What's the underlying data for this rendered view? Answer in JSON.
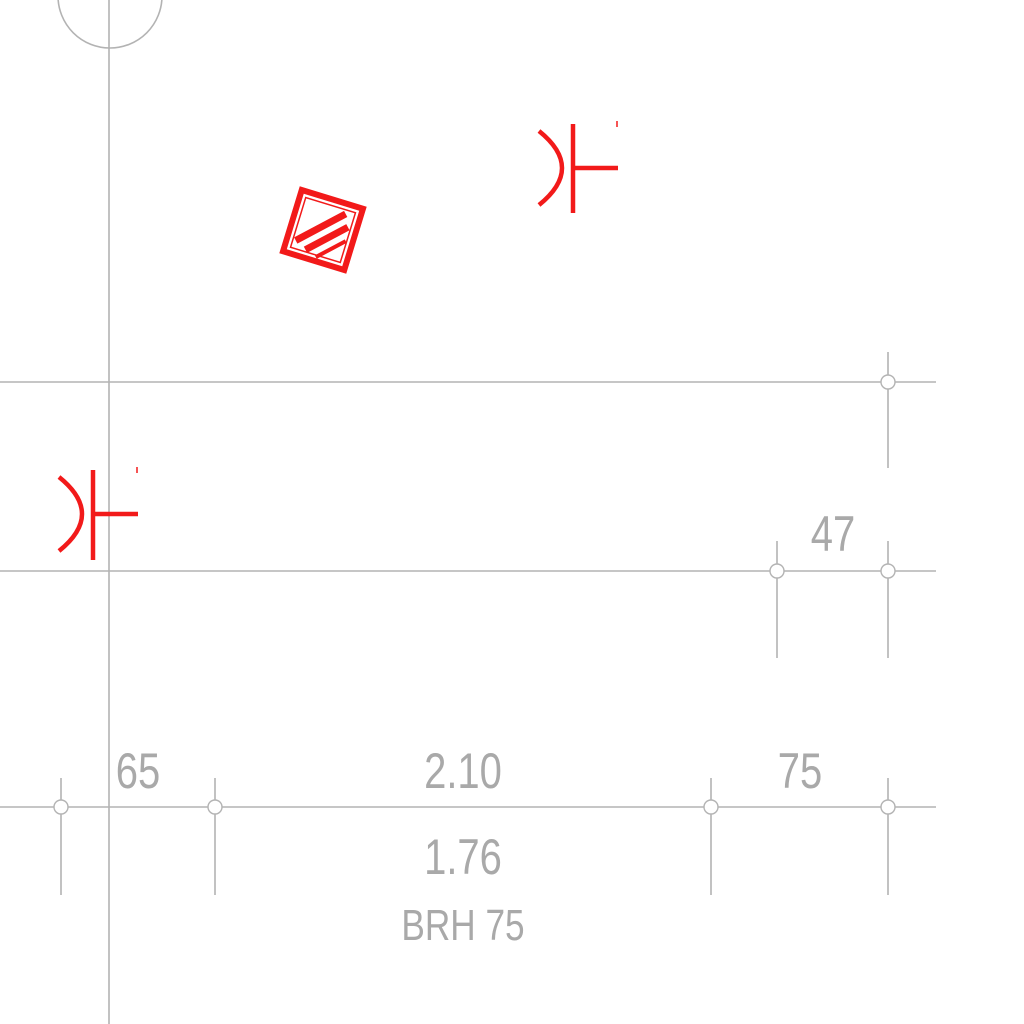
{
  "dimensions": {
    "left_span": "65",
    "center_span": "2.10",
    "right_span": "75",
    "vertical_span": "47",
    "opening_width": "1.76"
  },
  "notes": {
    "sill_height": "BRH 75"
  },
  "colors": {
    "linework": "#b3b3b3",
    "annotation_text": "#a9a9a9",
    "electrical_symbols": "#f21a1a"
  },
  "symbols": {
    "socket_symbol": "socket-outlet-symbol",
    "panel_symbol": "distribution-panel-symbol"
  }
}
